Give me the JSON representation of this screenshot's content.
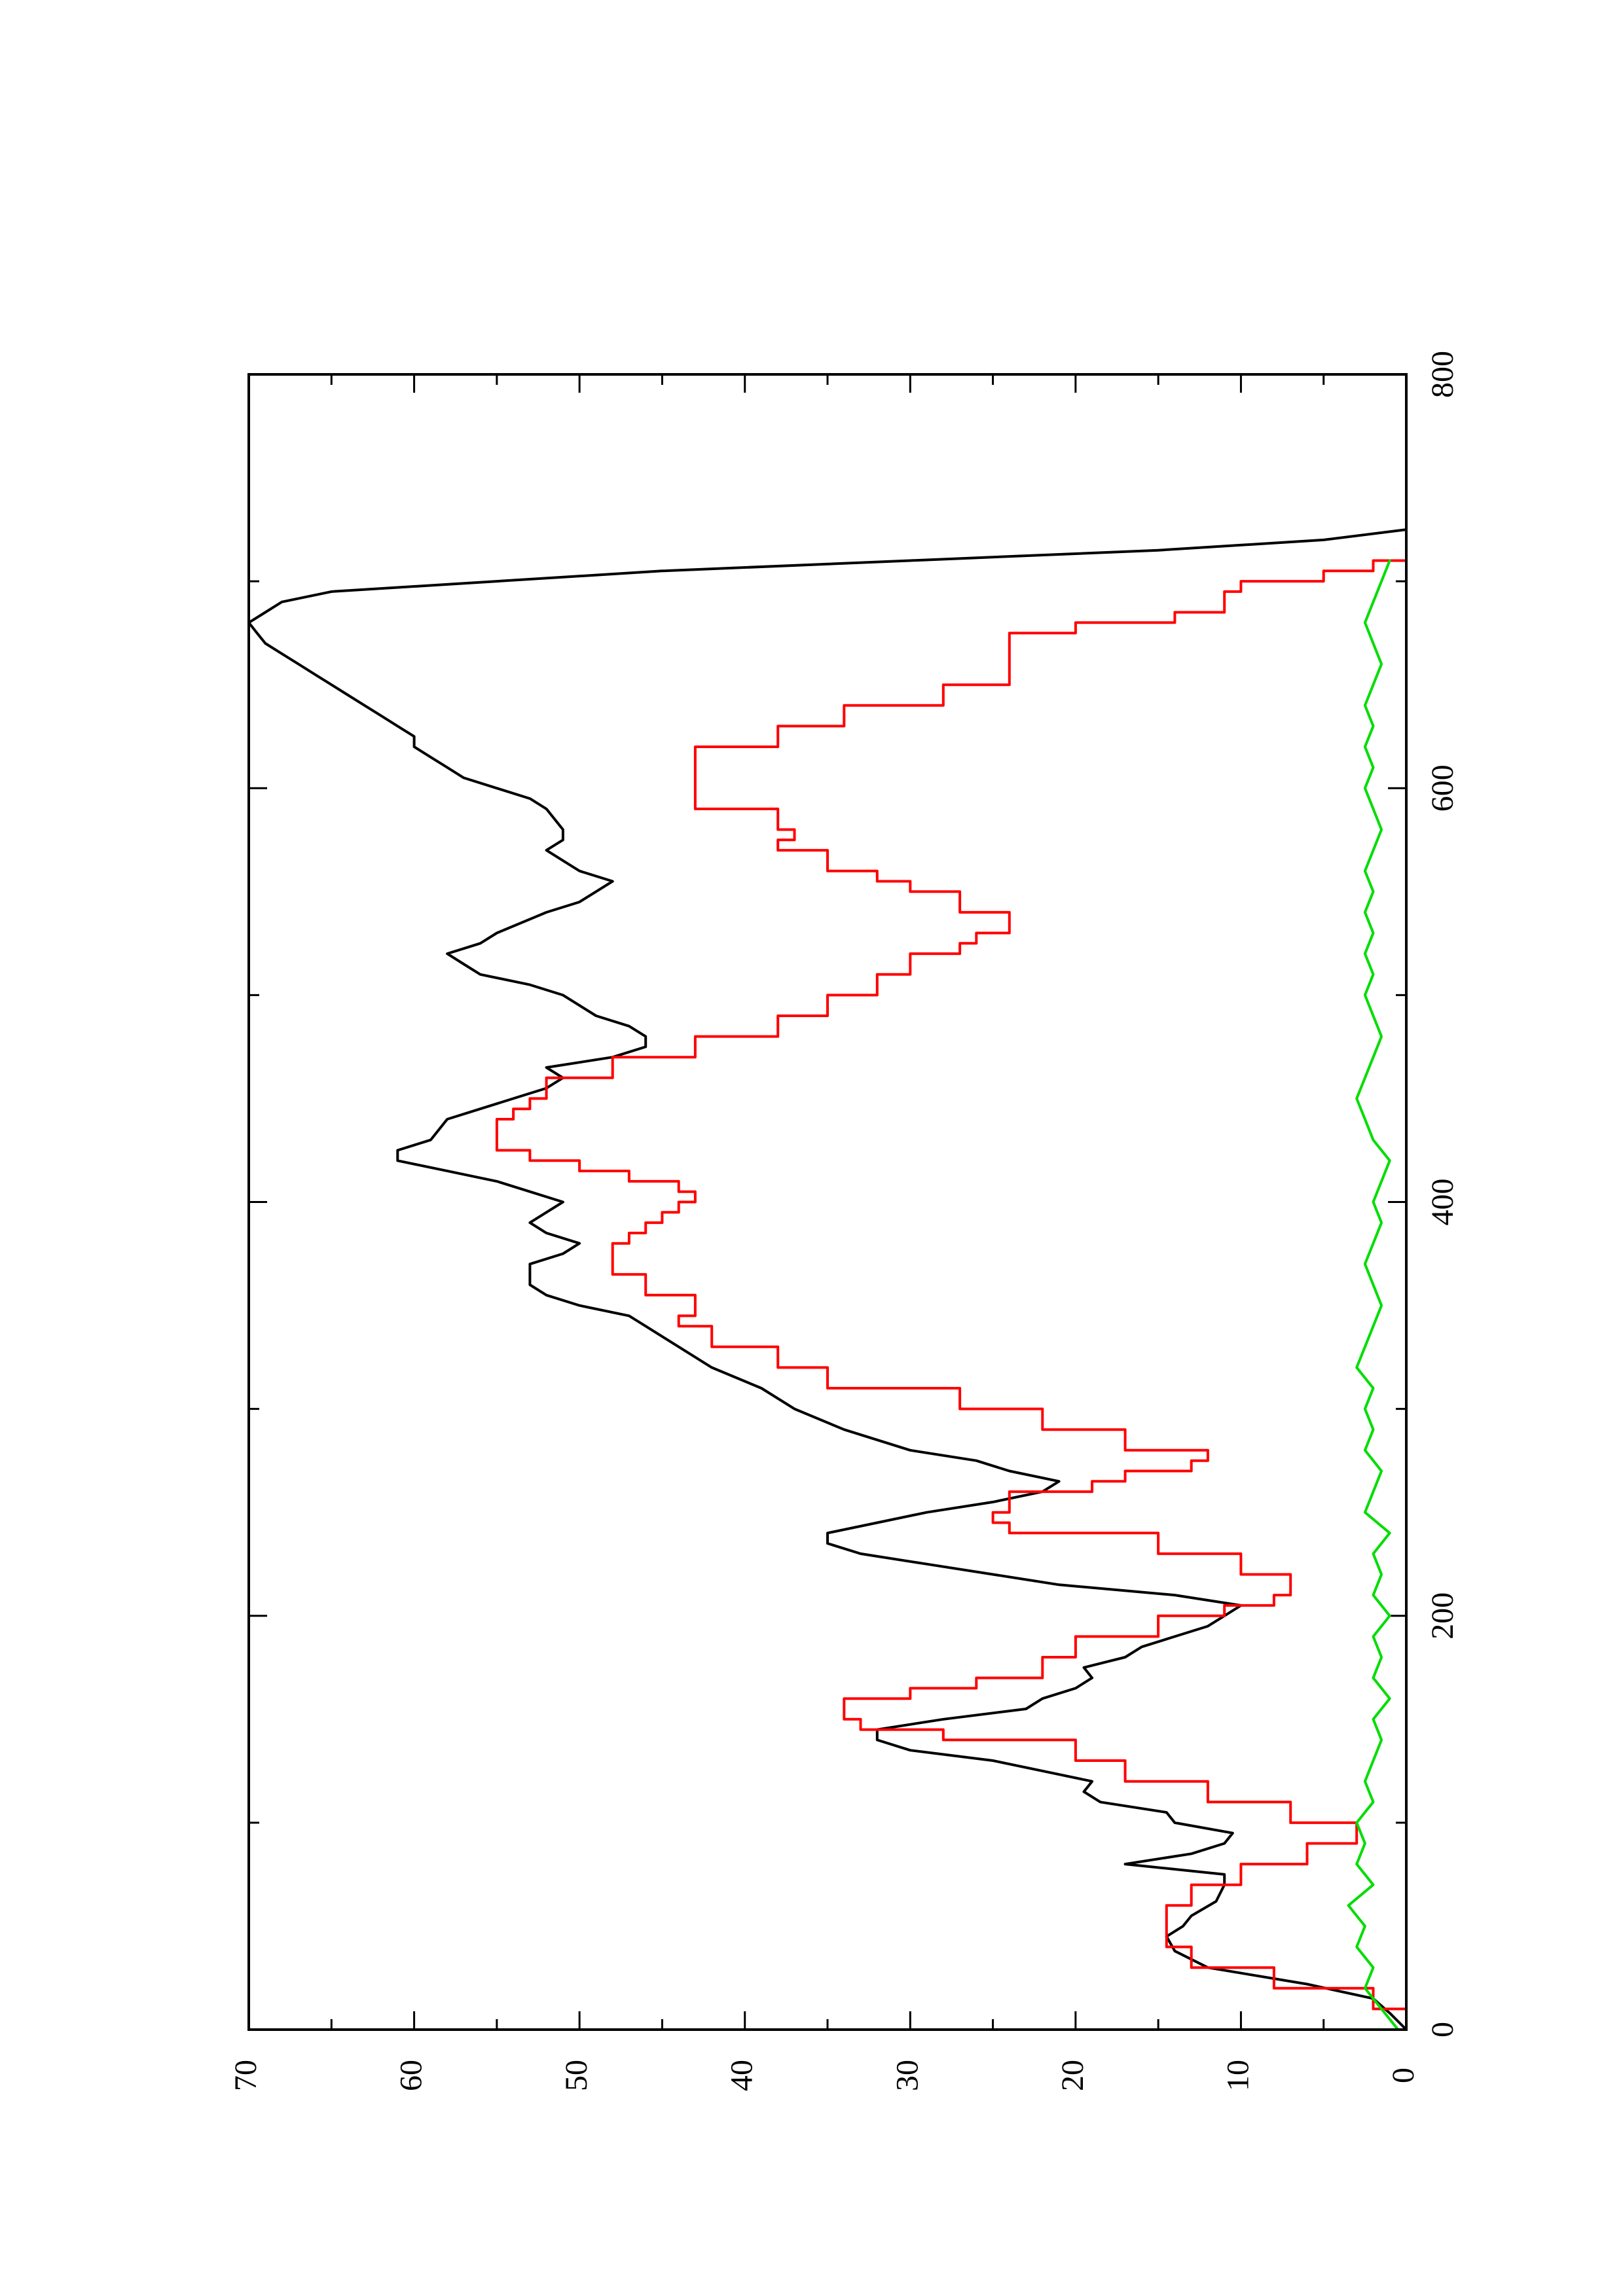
{
  "chart_data": {
    "type": "line",
    "title": "",
    "xlabel": "",
    "ylabel": "",
    "orientation": "rotated 90° counter-clockwise (page in landscape)",
    "xlim": [
      0,
      800
    ],
    "ylim": [
      0,
      70
    ],
    "x_ticks": [
      "0",
      "200",
      "400",
      "600",
      "800"
    ],
    "y_ticks": [
      "0",
      "10",
      "20",
      "30",
      "40",
      "50",
      "60",
      "70"
    ],
    "grid": false,
    "legend": "none",
    "series": [
      {
        "color": "#000000",
        "style": "line",
        "points": [
          [
            0,
            0
          ],
          [
            8,
            1
          ],
          [
            15,
            2
          ],
          [
            22,
            6
          ],
          [
            30,
            12
          ],
          [
            38,
            14
          ],
          [
            45,
            14.5
          ],
          [
            50,
            13.5
          ],
          [
            55,
            13
          ],
          [
            62,
            11.5
          ],
          [
            70,
            11
          ],
          [
            75,
            11
          ],
          [
            80,
            17
          ],
          [
            85,
            13
          ],
          [
            90,
            11
          ],
          [
            95,
            10.5
          ],
          [
            100,
            14
          ],
          [
            105,
            14.5
          ],
          [
            110,
            18.5
          ],
          [
            115,
            19.5
          ],
          [
            120,
            19
          ],
          [
            125,
            22
          ],
          [
            130,
            25
          ],
          [
            135,
            30
          ],
          [
            140,
            32
          ],
          [
            145,
            32
          ],
          [
            150,
            28
          ],
          [
            155,
            23
          ],
          [
            160,
            22
          ],
          [
            165,
            20
          ],
          [
            170,
            19
          ],
          [
            175,
            19.5
          ],
          [
            180,
            17
          ],
          [
            185,
            16
          ],
          [
            190,
            14
          ],
          [
            195,
            12
          ],
          [
            200,
            11
          ],
          [
            205,
            10
          ],
          [
            210,
            14
          ],
          [
            215,
            21
          ],
          [
            220,
            25
          ],
          [
            225,
            29
          ],
          [
            230,
            33
          ],
          [
            235,
            35
          ],
          [
            240,
            35
          ],
          [
            245,
            32
          ],
          [
            250,
            29
          ],
          [
            255,
            25
          ],
          [
            260,
            22
          ],
          [
            265,
            21
          ],
          [
            270,
            24
          ],
          [
            275,
            26
          ],
          [
            280,
            30
          ],
          [
            290,
            34
          ],
          [
            300,
            37
          ],
          [
            310,
            39
          ],
          [
            320,
            42
          ],
          [
            330,
            44
          ],
          [
            340,
            46
          ],
          [
            345,
            47
          ],
          [
            350,
            50
          ],
          [
            355,
            52
          ],
          [
            360,
            53
          ],
          [
            370,
            53
          ],
          [
            375,
            51
          ],
          [
            380,
            50
          ],
          [
            385,
            52
          ],
          [
            390,
            53
          ],
          [
            395,
            52
          ],
          [
            400,
            51
          ],
          [
            405,
            53
          ],
          [
            410,
            55
          ],
          [
            415,
            58
          ],
          [
            420,
            61
          ],
          [
            425,
            61
          ],
          [
            430,
            59
          ],
          [
            440,
            58
          ],
          [
            445,
            56
          ],
          [
            450,
            54
          ],
          [
            455,
            52
          ],
          [
            460,
            51
          ],
          [
            465,
            52
          ],
          [
            470,
            48
          ],
          [
            475,
            46
          ],
          [
            480,
            46
          ],
          [
            485,
            47
          ],
          [
            490,
            49
          ],
          [
            500,
            51
          ],
          [
            505,
            53
          ],
          [
            510,
            56
          ],
          [
            515,
            57
          ],
          [
            520,
            58
          ],
          [
            525,
            56
          ],
          [
            530,
            55
          ],
          [
            540,
            52
          ],
          [
            545,
            50
          ],
          [
            550,
            49
          ],
          [
            555,
            48
          ],
          [
            560,
            50
          ],
          [
            565,
            51
          ],
          [
            570,
            52
          ],
          [
            575,
            51
          ],
          [
            580,
            51
          ],
          [
            590,
            52
          ],
          [
            595,
            53
          ],
          [
            600,
            55
          ],
          [
            605,
            57
          ],
          [
            610,
            58
          ],
          [
            615,
            59
          ],
          [
            620,
            60
          ],
          [
            625,
            60
          ],
          [
            630,
            61
          ],
          [
            635,
            62
          ],
          [
            640,
            63
          ],
          [
            645,
            64
          ],
          [
            650,
            65
          ],
          [
            655,
            66
          ],
          [
            660,
            67
          ],
          [
            665,
            68
          ],
          [
            670,
            69
          ],
          [
            675,
            69.5
          ],
          [
            680,
            70
          ],
          [
            685,
            69
          ],
          [
            690,
            68
          ],
          [
            695,
            65
          ],
          [
            700,
            55
          ],
          [
            705,
            45
          ],
          [
            710,
            30
          ],
          [
            715,
            15
          ],
          [
            720,
            5
          ],
          [
            725,
            0
          ]
        ]
      },
      {
        "color": "#ff0000",
        "style": "step",
        "points": [
          [
            0,
            0
          ],
          [
            10,
            2
          ],
          [
            20,
            8
          ],
          [
            30,
            13
          ],
          [
            40,
            14.5
          ],
          [
            50,
            14.5
          ],
          [
            60,
            13
          ],
          [
            70,
            10
          ],
          [
            80,
            6
          ],
          [
            90,
            3
          ],
          [
            95,
            3
          ],
          [
            100,
            7
          ],
          [
            110,
            12
          ],
          [
            120,
            17
          ],
          [
            130,
            20
          ],
          [
            140,
            28
          ],
          [
            145,
            33
          ],
          [
            150,
            34
          ],
          [
            155,
            34
          ],
          [
            160,
            30
          ],
          [
            165,
            26
          ],
          [
            170,
            22
          ],
          [
            180,
            20
          ],
          [
            190,
            15
          ],
          [
            200,
            11
          ],
          [
            205,
            8
          ],
          [
            210,
            7
          ],
          [
            220,
            10
          ],
          [
            230,
            15
          ],
          [
            240,
            24
          ],
          [
            245,
            25
          ],
          [
            250,
            24
          ],
          [
            260,
            19
          ],
          [
            265,
            17
          ],
          [
            270,
            13
          ],
          [
            275,
            12
          ],
          [
            280,
            17
          ],
          [
            290,
            22
          ],
          [
            300,
            27
          ],
          [
            310,
            35
          ],
          [
            320,
            38
          ],
          [
            330,
            42
          ],
          [
            340,
            44
          ],
          [
            345,
            43
          ],
          [
            355,
            46
          ],
          [
            365,
            48
          ],
          [
            375,
            48
          ],
          [
            380,
            47
          ],
          [
            385,
            46
          ],
          [
            390,
            45
          ],
          [
            395,
            44
          ],
          [
            400,
            43
          ],
          [
            405,
            44
          ],
          [
            410,
            47
          ],
          [
            415,
            50
          ],
          [
            420,
            53
          ],
          [
            425,
            55
          ],
          [
            430,
            55
          ],
          [
            440,
            54
          ],
          [
            445,
            53
          ],
          [
            450,
            52
          ],
          [
            460,
            48
          ],
          [
            470,
            43
          ],
          [
            480,
            38
          ],
          [
            490,
            35
          ],
          [
            500,
            32
          ],
          [
            510,
            30
          ],
          [
            520,
            27
          ],
          [
            525,
            26
          ],
          [
            530,
            24
          ],
          [
            540,
            27
          ],
          [
            550,
            30
          ],
          [
            555,
            32
          ],
          [
            560,
            35
          ],
          [
            570,
            38
          ],
          [
            575,
            37
          ],
          [
            580,
            38
          ],
          [
            590,
            43
          ],
          [
            600,
            43
          ],
          [
            610,
            43
          ],
          [
            620,
            38
          ],
          [
            630,
            34
          ],
          [
            640,
            28
          ],
          [
            650,
            24
          ],
          [
            660,
            24
          ],
          [
            670,
            24
          ],
          [
            675,
            20
          ],
          [
            680,
            14
          ],
          [
            685,
            11
          ],
          [
            690,
            11
          ],
          [
            695,
            10
          ],
          [
            700,
            5
          ],
          [
            705,
            2
          ],
          [
            710,
            0
          ]
        ]
      },
      {
        "color": "#00dd00",
        "style": "line",
        "points": [
          [
            0,
            0.5
          ],
          [
            10,
            1.5
          ],
          [
            20,
            2.5
          ],
          [
            30,
            2
          ],
          [
            40,
            3
          ],
          [
            50,
            2.5
          ],
          [
            60,
            3.5
          ],
          [
            70,
            2
          ],
          [
            80,
            3
          ],
          [
            90,
            2.5
          ],
          [
            100,
            3
          ],
          [
            110,
            2
          ],
          [
            120,
            2.5
          ],
          [
            130,
            2
          ],
          [
            140,
            1.5
          ],
          [
            150,
            2
          ],
          [
            160,
            1
          ],
          [
            170,
            2
          ],
          [
            180,
            1.5
          ],
          [
            190,
            2
          ],
          [
            200,
            1
          ],
          [
            210,
            2
          ],
          [
            220,
            1.5
          ],
          [
            230,
            2
          ],
          [
            240,
            1
          ],
          [
            250,
            2.5
          ],
          [
            260,
            2
          ],
          [
            270,
            1.5
          ],
          [
            280,
            2.5
          ],
          [
            290,
            2
          ],
          [
            300,
            2.5
          ],
          [
            310,
            2
          ],
          [
            320,
            3
          ],
          [
            330,
            2.5
          ],
          [
            340,
            2
          ],
          [
            350,
            1.5
          ],
          [
            360,
            2
          ],
          [
            370,
            2.5
          ],
          [
            380,
            2
          ],
          [
            390,
            1.5
          ],
          [
            400,
            2
          ],
          [
            410,
            1.5
          ],
          [
            420,
            1
          ],
          [
            430,
            2
          ],
          [
            440,
            2.5
          ],
          [
            450,
            3
          ],
          [
            460,
            2.5
          ],
          [
            470,
            2
          ],
          [
            480,
            1.5
          ],
          [
            490,
            2
          ],
          [
            500,
            2.5
          ],
          [
            510,
            2
          ],
          [
            520,
            2.5
          ],
          [
            530,
            2
          ],
          [
            540,
            2.5
          ],
          [
            550,
            2
          ],
          [
            560,
            2.5
          ],
          [
            570,
            2
          ],
          [
            580,
            1.5
          ],
          [
            590,
            2
          ],
          [
            600,
            2.5
          ],
          [
            610,
            2
          ],
          [
            620,
            2.5
          ],
          [
            630,
            2
          ],
          [
            640,
            2.5
          ],
          [
            650,
            2
          ],
          [
            660,
            1.5
          ],
          [
            670,
            2
          ],
          [
            680,
            2.5
          ],
          [
            690,
            2
          ],
          [
            700,
            1.5
          ],
          [
            710,
            1
          ]
        ]
      }
    ]
  }
}
